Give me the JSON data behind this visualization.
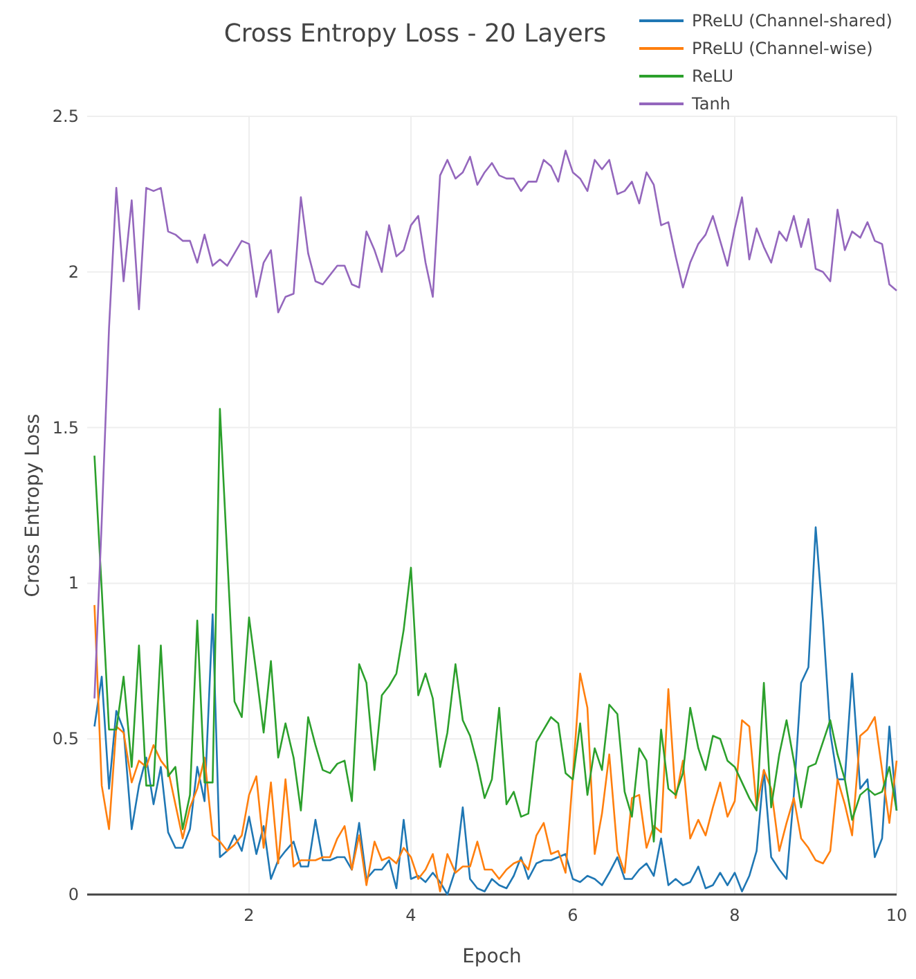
{
  "chart_data": {
    "type": "line",
    "title": "Cross Entropy Loss - 20 Layers",
    "xlabel": "Epoch",
    "ylabel": "Cross Entropy Loss",
    "x": [
      0.09,
      0.18,
      0.27,
      0.36,
      0.45,
      0.55,
      0.64,
      0.73,
      0.82,
      0.91,
      1,
      1.09,
      1.18,
      1.27,
      1.36,
      1.45,
      1.55,
      1.64,
      1.73,
      1.82,
      1.91,
      2,
      2.09,
      2.18,
      2.27,
      2.36,
      2.45,
      2.55,
      2.64,
      2.73,
      2.82,
      2.91,
      3,
      3.09,
      3.18,
      3.27,
      3.36,
      3.45,
      3.55,
      3.64,
      3.73,
      3.82,
      3.91,
      4,
      4.09,
      4.18,
      4.27,
      4.36,
      4.45,
      4.55,
      4.64,
      4.73,
      4.82,
      4.91,
      5,
      5.09,
      5.18,
      5.27,
      5.36,
      5.45,
      5.55,
      5.64,
      5.73,
      5.82,
      5.91,
      6,
      6.09,
      6.18,
      6.27,
      6.36,
      6.45,
      6.55,
      6.64,
      6.73,
      6.82,
      6.91,
      7,
      7.09,
      7.18,
      7.27,
      7.36,
      7.45,
      7.55,
      7.64,
      7.73,
      7.82,
      7.91,
      8,
      8.09,
      8.18,
      8.27,
      8.36,
      8.45,
      8.55,
      8.64,
      8.73,
      8.82,
      8.91,
      9,
      9.09,
      9.18,
      9.27,
      9.36,
      9.45,
      9.55,
      9.64,
      9.73,
      9.82,
      9.91,
      10
    ],
    "series": [
      {
        "name": "PReLU (Channel-shared)",
        "color": "#1f77b4",
        "values": [
          0.54,
          0.7,
          0.34,
          0.59,
          0.53,
          0.21,
          0.35,
          0.44,
          0.29,
          0.41,
          0.2,
          0.15,
          0.15,
          0.21,
          0.41,
          0.3,
          0.9,
          0.12,
          0.14,
          0.19,
          0.14,
          0.25,
          0.13,
          0.22,
          0.05,
          0.11,
          0.14,
          0.17,
          0.09,
          0.09,
          0.24,
          0.11,
          0.11,
          0.12,
          0.12,
          0.08,
          0.23,
          0.05,
          0.08,
          0.08,
          0.11,
          0.02,
          0.24,
          0.05,
          0.06,
          0.04,
          0.07,
          0.04,
          0.0,
          0.08,
          0.28,
          0.05,
          0.02,
          0.01,
          0.05,
          0.03,
          0.02,
          0.06,
          0.12,
          0.05,
          0.1,
          0.11,
          0.11,
          0.12,
          0.13,
          0.05,
          0.04,
          0.06,
          0.05,
          0.03,
          0.07,
          0.12,
          0.05,
          0.05,
          0.08,
          0.1,
          0.06,
          0.18,
          0.03,
          0.05,
          0.03,
          0.04,
          0.09,
          0.02,
          0.03,
          0.07,
          0.03,
          0.07,
          0.01,
          0.06,
          0.14,
          0.4,
          0.12,
          0.08,
          0.05,
          0.32,
          0.68,
          0.73,
          1.18,
          0.88,
          0.52,
          0.37,
          0.37,
          0.71,
          0.34,
          0.37,
          0.12,
          0.18,
          0.54,
          0.27
        ]
      },
      {
        "name": "PReLU (Channel-wise)",
        "color": "#ff7f0e",
        "values": [
          0.93,
          0.35,
          0.21,
          0.54,
          0.52,
          0.36,
          0.43,
          0.41,
          0.48,
          0.43,
          0.4,
          0.29,
          0.18,
          0.28,
          0.34,
          0.44,
          0.19,
          0.17,
          0.14,
          0.16,
          0.19,
          0.32,
          0.38,
          0.15,
          0.36,
          0.1,
          0.37,
          0.09,
          0.11,
          0.11,
          0.11,
          0.12,
          0.12,
          0.18,
          0.22,
          0.08,
          0.19,
          0.03,
          0.17,
          0.11,
          0.12,
          0.1,
          0.15,
          0.12,
          0.05,
          0.08,
          0.13,
          0.01,
          0.13,
          0.07,
          0.09,
          0.09,
          0.17,
          0.08,
          0.08,
          0.05,
          0.08,
          0.1,
          0.11,
          0.08,
          0.19,
          0.23,
          0.13,
          0.14,
          0.07,
          0.38,
          0.71,
          0.6,
          0.13,
          0.26,
          0.45,
          0.14,
          0.07,
          0.31,
          0.32,
          0.15,
          0.22,
          0.2,
          0.66,
          0.31,
          0.43,
          0.18,
          0.24,
          0.19,
          0.28,
          0.36,
          0.25,
          0.3,
          0.56,
          0.54,
          0.28,
          0.4,
          0.34,
          0.14,
          0.23,
          0.31,
          0.18,
          0.15,
          0.11,
          0.1,
          0.14,
          0.37,
          0.29,
          0.19,
          0.51,
          0.53,
          0.57,
          0.4,
          0.23,
          0.43
        ]
      },
      {
        "name": "ReLU",
        "color": "#2ca02c",
        "values": [
          1.41,
          0.98,
          0.53,
          0.53,
          0.7,
          0.41,
          0.8,
          0.35,
          0.35,
          0.8,
          0.38,
          0.41,
          0.21,
          0.32,
          0.88,
          0.36,
          0.36,
          1.56,
          1.09,
          0.62,
          0.57,
          0.89,
          0.71,
          0.52,
          0.75,
          0.44,
          0.55,
          0.44,
          0.27,
          0.57,
          0.48,
          0.4,
          0.39,
          0.42,
          0.43,
          0.3,
          0.74,
          0.68,
          0.4,
          0.64,
          0.67,
          0.71,
          0.85,
          1.05,
          0.64,
          0.71,
          0.63,
          0.41,
          0.52,
          0.74,
          0.56,
          0.51,
          0.42,
          0.31,
          0.37,
          0.6,
          0.29,
          0.33,
          0.25,
          0.26,
          0.49,
          0.53,
          0.57,
          0.55,
          0.39,
          0.37,
          0.55,
          0.32,
          0.47,
          0.4,
          0.61,
          0.58,
          0.33,
          0.25,
          0.47,
          0.43,
          0.17,
          0.53,
          0.34,
          0.32,
          0.39,
          0.6,
          0.47,
          0.4,
          0.51,
          0.5,
          0.43,
          0.41,
          0.36,
          0.31,
          0.27,
          0.68,
          0.28,
          0.45,
          0.56,
          0.43,
          0.28,
          0.41,
          0.42,
          0.49,
          0.56,
          0.45,
          0.37,
          0.24,
          0.32,
          0.34,
          0.32,
          0.33,
          0.41,
          0.27
        ]
      },
      {
        "name": "Tanh",
        "color": "#9467bd",
        "values": [
          0.63,
          1.2,
          1.82,
          2.27,
          1.97,
          2.23,
          1.88,
          2.27,
          2.26,
          2.27,
          2.13,
          2.12,
          2.1,
          2.1,
          2.03,
          2.12,
          2.02,
          2.04,
          2.02,
          2.06,
          2.1,
          2.09,
          1.92,
          2.03,
          2.07,
          1.87,
          1.92,
          1.93,
          2.24,
          2.06,
          1.97,
          1.96,
          1.99,
          2.02,
          2.02,
          1.96,
          1.95,
          2.13,
          2.07,
          2.0,
          2.15,
          2.05,
          2.07,
          2.15,
          2.18,
          2.03,
          1.92,
          2.31,
          2.36,
          2.3,
          2.32,
          2.37,
          2.28,
          2.32,
          2.35,
          2.31,
          2.3,
          2.3,
          2.26,
          2.29,
          2.29,
          2.36,
          2.34,
          2.29,
          2.39,
          2.32,
          2.3,
          2.26,
          2.36,
          2.33,
          2.36,
          2.25,
          2.26,
          2.29,
          2.22,
          2.32,
          2.28,
          2.15,
          2.16,
          2.05,
          1.95,
          2.03,
          2.09,
          2.12,
          2.18,
          2.1,
          2.02,
          2.14,
          2.24,
          2.04,
          2.14,
          2.08,
          2.03,
          2.13,
          2.1,
          2.18,
          2.08,
          2.17,
          2.01,
          2.0,
          1.97,
          2.2,
          2.07,
          2.13,
          2.11,
          2.16,
          2.1,
          2.09,
          1.96,
          1.94
        ]
      }
    ],
    "xlim": [
      0,
      10
    ],
    "xticks": [
      2,
      4,
      6,
      8,
      10
    ],
    "ylim": [
      0,
      2.5
    ],
    "yticks": [
      0,
      0.5,
      1,
      1.5,
      2,
      2.5
    ],
    "grid": true,
    "legend": "top right"
  }
}
